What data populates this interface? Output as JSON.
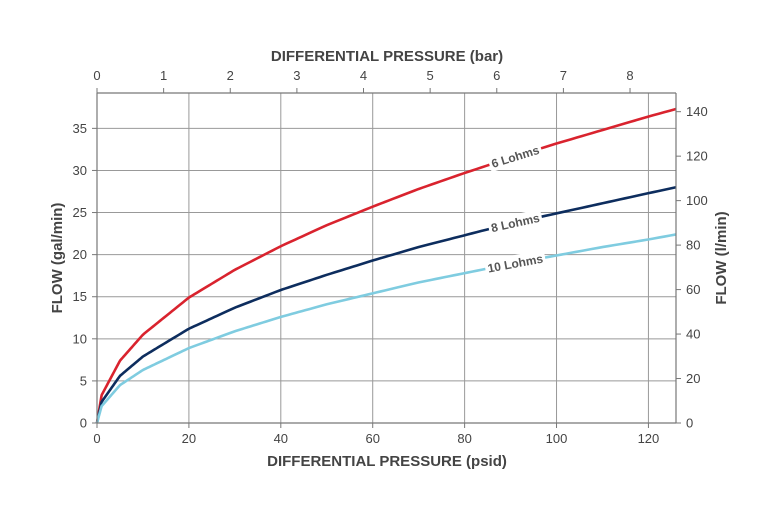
{
  "chart_data": {
    "type": "line",
    "title": "",
    "xlabel": "DIFFERENTIAL PRESSURE (psid)",
    "ylabel": "FLOW (gal/min)",
    "x2label": "DIFFERENTIAL PRESSURE (bar)",
    "y2label": "FLOW (l/min)",
    "xlim": [
      0,
      126
    ],
    "ylim": [
      0,
      39.2
    ],
    "x2lim": [
      0,
      8.69
    ],
    "y2lim": [
      0,
      148.4
    ],
    "x_ticks": [
      "0",
      "20",
      "40",
      "60",
      "80",
      "100",
      "120"
    ],
    "y_ticks": [
      "0",
      "5",
      "10",
      "15",
      "20",
      "25",
      "30",
      "35"
    ],
    "x2_ticks": [
      "0",
      "1",
      "2",
      "3",
      "4",
      "5",
      "6",
      "7",
      "8"
    ],
    "y2_ticks": [
      "0",
      "20",
      "40",
      "60",
      "80",
      "100",
      "120",
      "140"
    ],
    "grid": true,
    "legend": "inline curve labels",
    "series": [
      {
        "name": "6 Lohms",
        "color": "#d9232e",
        "x": [
          0,
          1,
          5,
          10,
          20,
          30,
          40,
          50,
          60,
          70,
          80,
          90,
          100,
          110,
          120,
          126
        ],
        "y": [
          0,
          3.3,
          7.4,
          10.5,
          14.9,
          18.2,
          21.0,
          23.5,
          25.7,
          27.8,
          29.7,
          31.5,
          33.2,
          34.8,
          36.4,
          37.3
        ]
      },
      {
        "name": "8 Lohms",
        "color": "#0d2d5e",
        "x": [
          0,
          1,
          5,
          10,
          20,
          30,
          40,
          50,
          60,
          70,
          80,
          90,
          100,
          110,
          120,
          126
        ],
        "y": [
          0,
          2.5,
          5.6,
          7.9,
          11.2,
          13.7,
          15.8,
          17.6,
          19.3,
          20.9,
          22.3,
          23.7,
          24.9,
          26.1,
          27.3,
          28.0
        ]
      },
      {
        "name": "10 Lohms",
        "color": "#7fcce0",
        "x": [
          0,
          1,
          5,
          10,
          20,
          30,
          40,
          50,
          60,
          70,
          80,
          90,
          100,
          110,
          120,
          126
        ],
        "y": [
          0,
          2.0,
          4.5,
          6.3,
          8.9,
          10.9,
          12.6,
          14.1,
          15.4,
          16.7,
          17.8,
          18.9,
          19.9,
          20.9,
          21.8,
          22.4
        ]
      }
    ],
    "curve_labels": [
      {
        "series": 0,
        "text": "6 Lohms",
        "x": 91
      },
      {
        "series": 1,
        "text": "8 Lohms",
        "x": 91
      },
      {
        "series": 2,
        "text": "10 Lohms",
        "x": 91
      }
    ]
  }
}
